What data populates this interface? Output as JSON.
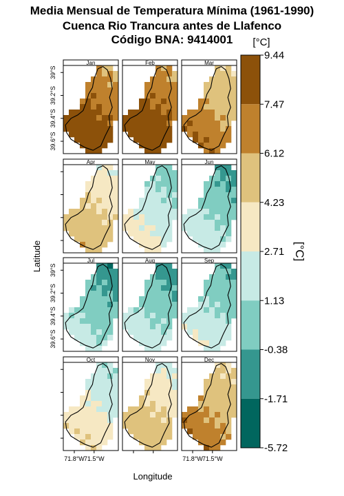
{
  "title": {
    "line1": "Media Mensual de Temperatura Mínima (1961-1990)",
    "line2": "Cuenca Rio Trancura antes de Llafenco",
    "line3": "Código BNA: 9414001"
  },
  "axes": {
    "xlabel": "Longitude",
    "ylabel": "Latitude",
    "x_ticks": [
      "71.8°W",
      "71.5°W"
    ],
    "y_ticks": [
      "39°S",
      "39.2°S",
      "39.4°S",
      "39.6°S"
    ]
  },
  "colorbar": {
    "unit_top": "[°C]",
    "unit_side": "[°C]",
    "ticks": [
      "9.44",
      "7.47",
      "6.12",
      "4.23",
      "2.71",
      "1.13",
      "-0.38",
      "-1.71",
      "-5.72"
    ],
    "colors": [
      "#8c510a",
      "#bf812d",
      "#dfc27d",
      "#f6e8c3",
      "#c7eae5",
      "#80cdc1",
      "#35978f",
      "#01665e"
    ]
  },
  "chart_data": {
    "type": "heatmap",
    "panels": [
      {
        "month": "Jan",
        "level": 7.8
      },
      {
        "month": "Feb",
        "level": 8.0
      },
      {
        "month": "Mar",
        "level": 6.3
      },
      {
        "month": "Apr",
        "level": 4.6
      },
      {
        "month": "May",
        "level": 2.2
      },
      {
        "month": "Jun",
        "level": 1.0
      },
      {
        "month": "Jul",
        "level": 0.6
      },
      {
        "month": "Aug",
        "level": 0.9
      },
      {
        "month": "Sep",
        "level": 1.4
      },
      {
        "month": "Oct",
        "level": 3.0
      },
      {
        "month": "Nov",
        "level": 4.4
      },
      {
        "month": "Dec",
        "level": 6.0
      }
    ]
  }
}
